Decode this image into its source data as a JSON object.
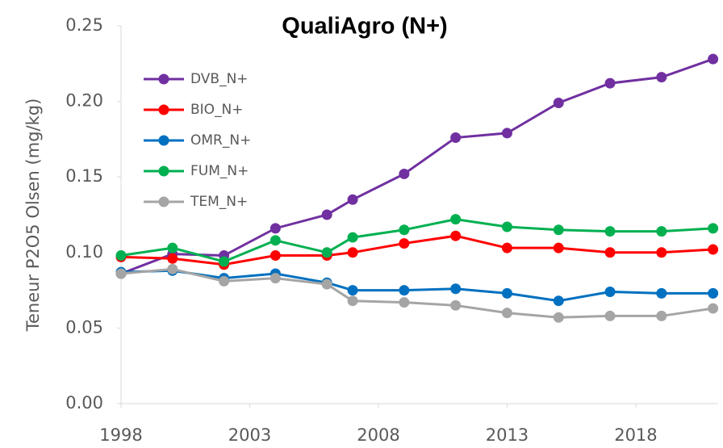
{
  "chart_data": {
    "type": "line",
    "title": "QualiAgro (N+)",
    "y_label": "Teneur P2O5 Olsen (mg/kg)",
    "x": [
      1998,
      2000,
      2002,
      2004,
      2006,
      2007,
      2009,
      2011,
      2013,
      2015,
      2017,
      2019,
      2021
    ],
    "series": [
      {
        "name": "DVB_N+",
        "color": "#7030a0",
        "values": [
          0.086,
          0.099,
          0.098,
          0.116,
          0.125,
          0.135,
          0.152,
          0.176,
          0.179,
          0.199,
          0.212,
          0.216,
          0.228
        ]
      },
      {
        "name": "BIO_N+",
        "color": "#ff0000",
        "values": [
          0.097,
          0.096,
          0.092,
          0.098,
          0.098,
          0.1,
          0.106,
          0.111,
          0.103,
          0.103,
          0.1,
          0.1,
          0.102
        ]
      },
      {
        "name": "OMR_N+",
        "color": "#0070c0",
        "values": [
          0.087,
          0.088,
          0.083,
          0.086,
          0.08,
          0.075,
          0.075,
          0.076,
          0.073,
          0.068,
          0.074,
          0.073,
          0.073
        ]
      },
      {
        "name": "FUM_N+",
        "color": "#00b050",
        "values": [
          0.098,
          0.103,
          0.094,
          0.108,
          0.1,
          0.11,
          0.115,
          0.122,
          0.117,
          0.115,
          0.114,
          0.114,
          0.116
        ]
      },
      {
        "name": "TEM_N+",
        "color": "#a5a5a5",
        "values": [
          0.086,
          0.089,
          0.081,
          0.083,
          0.079,
          0.068,
          0.067,
          0.065,
          0.06,
          0.057,
          0.058,
          0.058,
          0.063
        ]
      }
    ],
    "xlim": [
      1998,
      2021.2
    ],
    "xticks": [
      1998,
      2003,
      2008,
      2013,
      2018
    ],
    "ylim": [
      0,
      0.25
    ],
    "yticks": [
      {
        "value": 0,
        "label": "0.00"
      },
      {
        "value": 0.05,
        "label": "0.05"
      },
      {
        "value": 0.1,
        "label": "0.10"
      },
      {
        "value": 0.15,
        "label": "0.15"
      },
      {
        "value": 0.2,
        "label": "0.20"
      },
      0.25
    ],
    "grid": false,
    "legend": "upper left"
  }
}
